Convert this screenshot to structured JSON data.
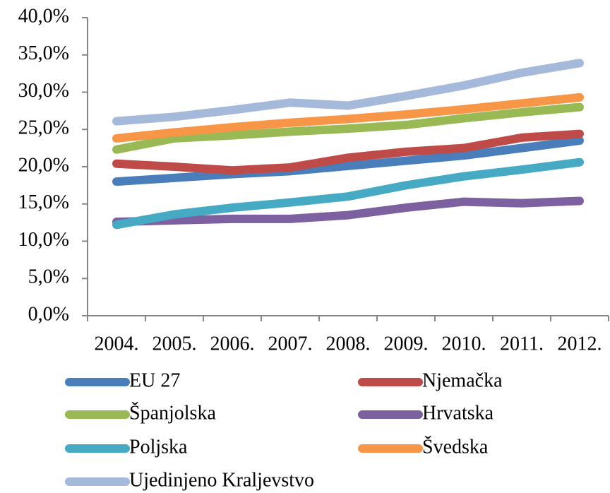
{
  "chart_data": {
    "type": "line",
    "categories": [
      "2004.",
      "2005.",
      "2006.",
      "2007.",
      "2008.",
      "2009.",
      "2010.",
      "2011.",
      "2012."
    ],
    "series": [
      {
        "name": "EU 27",
        "color": "#4a7ebb",
        "values": [
          18.0,
          18.5,
          19.0,
          19.4,
          20.1,
          20.8,
          21.5,
          22.5,
          23.5
        ]
      },
      {
        "name": "Njemačka",
        "color": "#be4b48",
        "values": [
          20.4,
          20.0,
          19.5,
          19.9,
          21.2,
          22.0,
          22.5,
          23.9,
          24.4
        ]
      },
      {
        "name": "Španjolska",
        "color": "#98b954",
        "values": [
          22.3,
          23.8,
          24.2,
          24.7,
          25.1,
          25.6,
          26.5,
          27.3,
          28.0
        ]
      },
      {
        "name": "Hrvatska",
        "color": "#7d60a0",
        "values": [
          12.6,
          12.8,
          13.0,
          13.0,
          13.5,
          14.5,
          15.3,
          15.1,
          15.4
        ]
      },
      {
        "name": "Poljska",
        "color": "#46aac5",
        "values": [
          12.2,
          13.6,
          14.5,
          15.2,
          16.0,
          17.5,
          18.7,
          19.6,
          20.6
        ]
      },
      {
        "name": "Švedska",
        "color": "#f79646",
        "values": [
          23.8,
          24.6,
          25.3,
          25.9,
          26.4,
          27.0,
          27.7,
          28.5,
          29.3
        ]
      },
      {
        "name": "Ujedinjeno Kraljevstvo",
        "color": "#a5b9da",
        "values": [
          26.1,
          26.7,
          27.6,
          28.6,
          28.2,
          29.5,
          30.9,
          32.6,
          33.9
        ]
      }
    ],
    "ylim": [
      0,
      40
    ],
    "yticks": [
      {
        "value": 0,
        "label": "0,0%"
      },
      {
        "value": 5,
        "label": "5,0%"
      },
      {
        "value": 10,
        "label": "10,0%"
      },
      {
        "value": 15,
        "label": "15,0%"
      },
      {
        "value": 20,
        "label": "20,0%"
      },
      {
        "value": 25,
        "label": "25,0%"
      },
      {
        "value": 30,
        "label": "30,0%"
      },
      {
        "value": 35,
        "label": "35,0%"
      },
      {
        "value": 40,
        "label": "40,0%"
      }
    ],
    "grid": false,
    "legend": "bottom"
  }
}
